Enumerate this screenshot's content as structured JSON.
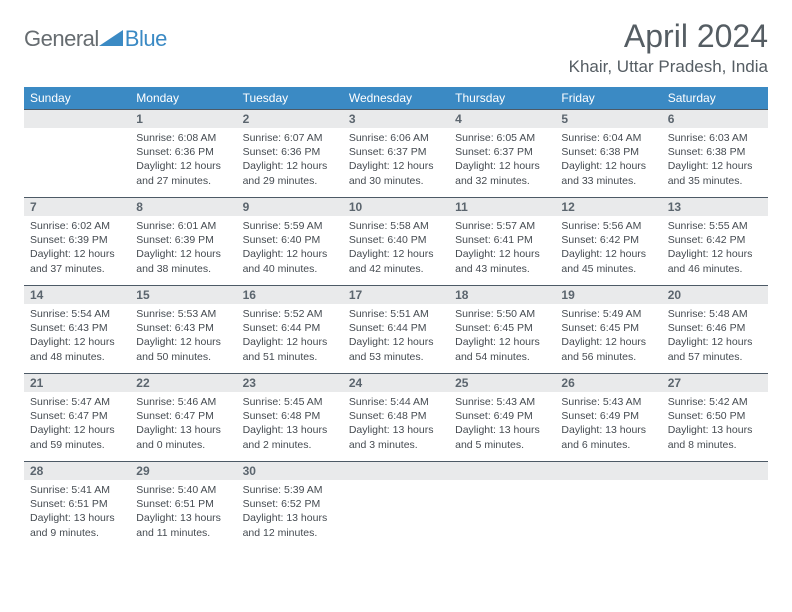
{
  "logo": {
    "general": "General",
    "blue": "Blue",
    "shape_color": "#3b8ac4"
  },
  "title": "April 2024",
  "location": "Khair, Uttar Pradesh, India",
  "colors": {
    "header_bg": "#3b8ac4",
    "daynum_bg": "#e9eaeb",
    "daynum_border": "#4d5a66",
    "text": "#454b51"
  },
  "weekdays": [
    "Sunday",
    "Monday",
    "Tuesday",
    "Wednesday",
    "Thursday",
    "Friday",
    "Saturday"
  ],
  "weeks": [
    [
      null,
      {
        "n": "1",
        "sr": "Sunrise: 6:08 AM",
        "ss": "Sunset: 6:36 PM",
        "dl": "Daylight: 12 hours and 27 minutes."
      },
      {
        "n": "2",
        "sr": "Sunrise: 6:07 AM",
        "ss": "Sunset: 6:36 PM",
        "dl": "Daylight: 12 hours and 29 minutes."
      },
      {
        "n": "3",
        "sr": "Sunrise: 6:06 AM",
        "ss": "Sunset: 6:37 PM",
        "dl": "Daylight: 12 hours and 30 minutes."
      },
      {
        "n": "4",
        "sr": "Sunrise: 6:05 AM",
        "ss": "Sunset: 6:37 PM",
        "dl": "Daylight: 12 hours and 32 minutes."
      },
      {
        "n": "5",
        "sr": "Sunrise: 6:04 AM",
        "ss": "Sunset: 6:38 PM",
        "dl": "Daylight: 12 hours and 33 minutes."
      },
      {
        "n": "6",
        "sr": "Sunrise: 6:03 AM",
        "ss": "Sunset: 6:38 PM",
        "dl": "Daylight: 12 hours and 35 minutes."
      }
    ],
    [
      {
        "n": "7",
        "sr": "Sunrise: 6:02 AM",
        "ss": "Sunset: 6:39 PM",
        "dl": "Daylight: 12 hours and 37 minutes."
      },
      {
        "n": "8",
        "sr": "Sunrise: 6:01 AM",
        "ss": "Sunset: 6:39 PM",
        "dl": "Daylight: 12 hours and 38 minutes."
      },
      {
        "n": "9",
        "sr": "Sunrise: 5:59 AM",
        "ss": "Sunset: 6:40 PM",
        "dl": "Daylight: 12 hours and 40 minutes."
      },
      {
        "n": "10",
        "sr": "Sunrise: 5:58 AM",
        "ss": "Sunset: 6:40 PM",
        "dl": "Daylight: 12 hours and 42 minutes."
      },
      {
        "n": "11",
        "sr": "Sunrise: 5:57 AM",
        "ss": "Sunset: 6:41 PM",
        "dl": "Daylight: 12 hours and 43 minutes."
      },
      {
        "n": "12",
        "sr": "Sunrise: 5:56 AM",
        "ss": "Sunset: 6:42 PM",
        "dl": "Daylight: 12 hours and 45 minutes."
      },
      {
        "n": "13",
        "sr": "Sunrise: 5:55 AM",
        "ss": "Sunset: 6:42 PM",
        "dl": "Daylight: 12 hours and 46 minutes."
      }
    ],
    [
      {
        "n": "14",
        "sr": "Sunrise: 5:54 AM",
        "ss": "Sunset: 6:43 PM",
        "dl": "Daylight: 12 hours and 48 minutes."
      },
      {
        "n": "15",
        "sr": "Sunrise: 5:53 AM",
        "ss": "Sunset: 6:43 PM",
        "dl": "Daylight: 12 hours and 50 minutes."
      },
      {
        "n": "16",
        "sr": "Sunrise: 5:52 AM",
        "ss": "Sunset: 6:44 PM",
        "dl": "Daylight: 12 hours and 51 minutes."
      },
      {
        "n": "17",
        "sr": "Sunrise: 5:51 AM",
        "ss": "Sunset: 6:44 PM",
        "dl": "Daylight: 12 hours and 53 minutes."
      },
      {
        "n": "18",
        "sr": "Sunrise: 5:50 AM",
        "ss": "Sunset: 6:45 PM",
        "dl": "Daylight: 12 hours and 54 minutes."
      },
      {
        "n": "19",
        "sr": "Sunrise: 5:49 AM",
        "ss": "Sunset: 6:45 PM",
        "dl": "Daylight: 12 hours and 56 minutes."
      },
      {
        "n": "20",
        "sr": "Sunrise: 5:48 AM",
        "ss": "Sunset: 6:46 PM",
        "dl": "Daylight: 12 hours and 57 minutes."
      }
    ],
    [
      {
        "n": "21",
        "sr": "Sunrise: 5:47 AM",
        "ss": "Sunset: 6:47 PM",
        "dl": "Daylight: 12 hours and 59 minutes."
      },
      {
        "n": "22",
        "sr": "Sunrise: 5:46 AM",
        "ss": "Sunset: 6:47 PM",
        "dl": "Daylight: 13 hours and 0 minutes."
      },
      {
        "n": "23",
        "sr": "Sunrise: 5:45 AM",
        "ss": "Sunset: 6:48 PM",
        "dl": "Daylight: 13 hours and 2 minutes."
      },
      {
        "n": "24",
        "sr": "Sunrise: 5:44 AM",
        "ss": "Sunset: 6:48 PM",
        "dl": "Daylight: 13 hours and 3 minutes."
      },
      {
        "n": "25",
        "sr": "Sunrise: 5:43 AM",
        "ss": "Sunset: 6:49 PM",
        "dl": "Daylight: 13 hours and 5 minutes."
      },
      {
        "n": "26",
        "sr": "Sunrise: 5:43 AM",
        "ss": "Sunset: 6:49 PM",
        "dl": "Daylight: 13 hours and 6 minutes."
      },
      {
        "n": "27",
        "sr": "Sunrise: 5:42 AM",
        "ss": "Sunset: 6:50 PM",
        "dl": "Daylight: 13 hours and 8 minutes."
      }
    ],
    [
      {
        "n": "28",
        "sr": "Sunrise: 5:41 AM",
        "ss": "Sunset: 6:51 PM",
        "dl": "Daylight: 13 hours and 9 minutes."
      },
      {
        "n": "29",
        "sr": "Sunrise: 5:40 AM",
        "ss": "Sunset: 6:51 PM",
        "dl": "Daylight: 13 hours and 11 minutes."
      },
      {
        "n": "30",
        "sr": "Sunrise: 5:39 AM",
        "ss": "Sunset: 6:52 PM",
        "dl": "Daylight: 13 hours and 12 minutes."
      },
      null,
      null,
      null,
      null
    ]
  ]
}
